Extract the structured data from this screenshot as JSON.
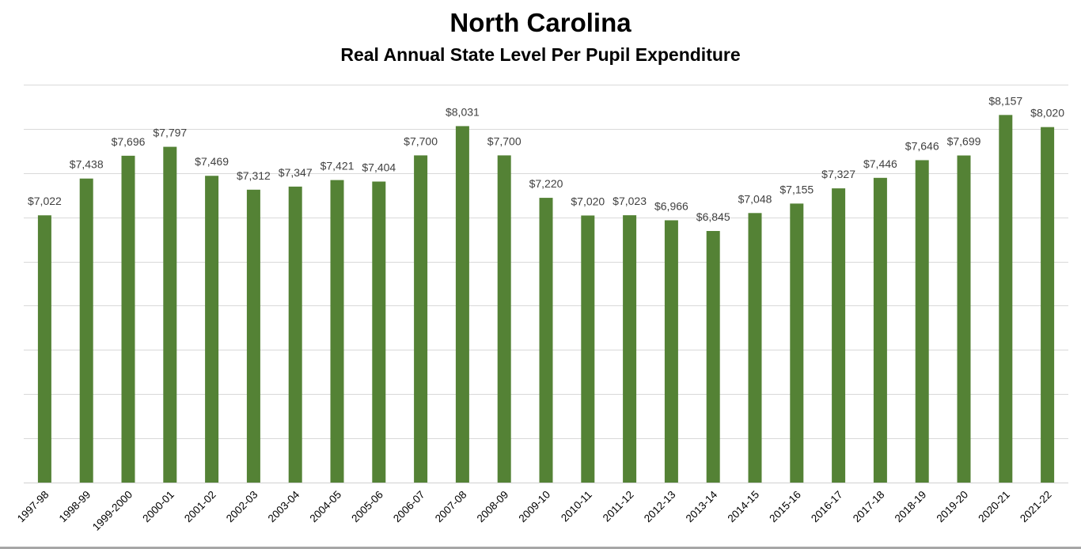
{
  "chart_data": {
    "type": "bar",
    "title": "North Carolina",
    "subtitle": "Real Annual State Level Per Pupil Expenditure",
    "xlabel": "",
    "ylabel": "",
    "ylim": [
      4000,
      8500
    ],
    "grid": true,
    "grid_step": 500,
    "bar_color": "#548235",
    "categories": [
      "1997-98",
      "1998-99",
      "1999-2000",
      "2000-01",
      "2001-02",
      "2002-03",
      "2003-04",
      "2004-05",
      "2005-06",
      "2006-07",
      "2007-08",
      "2008-09",
      "2009-10",
      "2010-11",
      "2011-12",
      "2012-13",
      "2013-14",
      "2014-15",
      "2015-16",
      "2016-17",
      "2017-18",
      "2018-19",
      "2019-20",
      "2020-21",
      "2021-22"
    ],
    "values": [
      7022,
      7438,
      7696,
      7797,
      7469,
      7312,
      7347,
      7421,
      7404,
      7700,
      8031,
      7700,
      7220,
      7020,
      7023,
      6966,
      6845,
      7048,
      7155,
      7327,
      7446,
      7646,
      7699,
      8157,
      8020
    ],
    "data_labels": [
      "$7,022",
      "$7,438",
      "$7,696",
      "$7,797",
      "$7,469",
      "$7,312",
      "$7,347",
      "$7,421",
      "$7,404",
      "$7,700",
      "$8,031",
      "$7,700",
      "$7,220",
      "$7,020",
      "$7,023",
      "$6,966",
      "$6,845",
      "$7,048",
      "$7,155",
      "$7,327",
      "$7,446",
      "$7,646",
      "$7,699",
      "$8,157",
      "$8,020"
    ]
  }
}
